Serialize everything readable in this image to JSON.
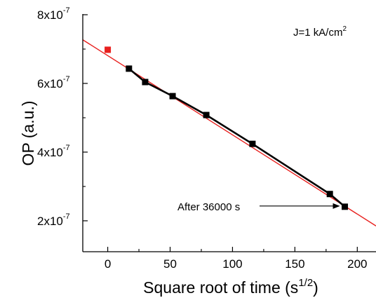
{
  "chart_data": {
    "type": "scatter",
    "xlabel": {
      "main": "Square root of time (s",
      "sup": "1/2",
      "end": ")"
    },
    "ylabel": "OP (a.u.)",
    "xlim": [
      -20,
      215
    ],
    "ylim": [
      1.1e-07,
      8e-07
    ],
    "grid": false,
    "x_ticks": [
      {
        "value": 0,
        "label": "0"
      },
      {
        "value": 50,
        "label": "50"
      },
      {
        "value": 100,
        "label": "100"
      },
      {
        "value": 150,
        "label": "150"
      },
      {
        "value": 200,
        "label": "200"
      }
    ],
    "y_ticks": [
      {
        "value": 2e-07,
        "base": "2x10",
        "exp": "-7"
      },
      {
        "value": 4e-07,
        "base": "4x10",
        "exp": "-7"
      },
      {
        "value": 6e-07,
        "base": "6x10",
        "exp": "-7"
      },
      {
        "value": 8e-07,
        "base": "8x10",
        "exp": "-7"
      }
    ],
    "annotation_condition": {
      "text": "J=1 kA/cm",
      "sup": "2"
    },
    "initial_point": {
      "x": 0,
      "y": 6.98e-07,
      "color": "#e8211f"
    },
    "series": [
      {
        "color": "#000000",
        "x": [
          17,
          30,
          52,
          79,
          116,
          178,
          190
        ],
        "y": [
          6.43e-07,
          6.04e-07,
          5.63e-07,
          5.08e-07,
          4.24e-07,
          2.78e-07,
          2.41e-07
        ]
      }
    ],
    "fit_line": {
      "color": "#e8211f",
      "x": [
        -20,
        215
      ],
      "y": [
        7.27e-07,
        1.85e-07
      ]
    },
    "arrow_annotation": {
      "text": "After 36000 s",
      "x": 190,
      "y": 2.41e-07
    }
  }
}
